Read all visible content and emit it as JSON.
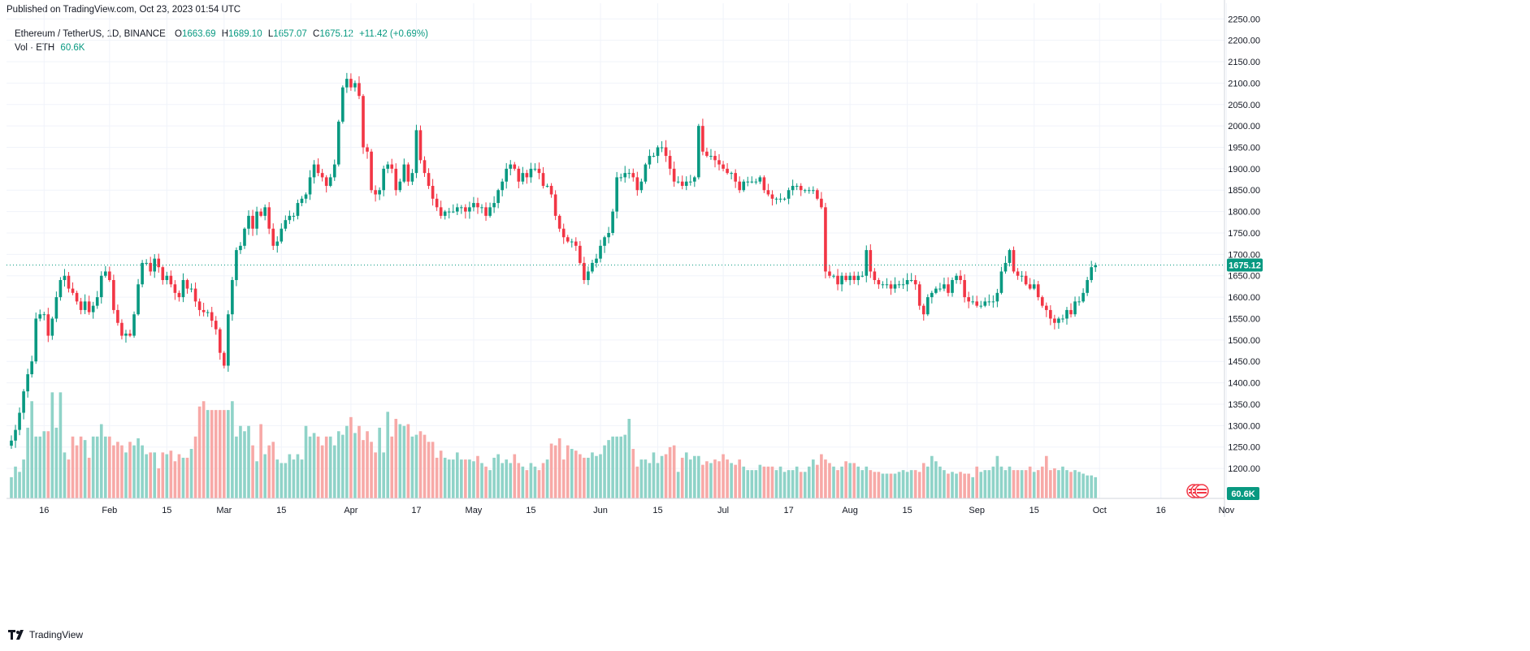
{
  "published": "Published on TradingView.com, Oct 23, 2023 01:54 UTC",
  "legend": {
    "symbol": "Ethereum / TetherUS, 1D, BINANCE",
    "open_label": "O",
    "open": "1663.69",
    "high_label": "H",
    "high": "1689.10",
    "low_label": "L",
    "low": "1657.07",
    "close_label": "C",
    "close": "1675.12",
    "change": "+11.42 (+0.69%)",
    "vol_label": "Vol · ETH",
    "vol_value": "60.6K"
  },
  "footer": {
    "brand": "TradingView"
  },
  "colors": {
    "up": "#089981",
    "down": "#f23645",
    "vol_up": "#8fd3c8",
    "vol_down": "#f7a9a7",
    "grid": "#f0f3fa",
    "text": "#131722"
  },
  "chart_data": {
    "type": "candlestick",
    "series_name": "Ethereum / TetherUS, 1D, BINANCE",
    "first_date": "2023-01-08",
    "last_price": 1675.12,
    "last_price_label": "1675.12",
    "last_volume_label": "60.6K",
    "ylim": [
      1130,
      2260
    ],
    "y_ticks": [
      1200,
      1250,
      1300,
      1350,
      1400,
      1450,
      1500,
      1550,
      1600,
      1650,
      1700,
      1750,
      1800,
      1850,
      1900,
      1950,
      2000,
      2050,
      2100,
      2150,
      2200,
      2250
    ],
    "y_tick_labels": [
      "1200.00",
      "1250.00",
      "1300.00",
      "1350.00",
      "1400.00",
      "1450.00",
      "1500.00",
      "1550.00",
      "1600.00",
      "1650.00",
      "1700.00",
      "1750.00",
      "1800.00",
      "1850.00",
      "1900.00",
      "1950.00",
      "2000.00",
      "2050.00",
      "2100.00",
      "2150.00",
      "2200.00",
      "2250.00"
    ],
    "x_tick_labels": [
      {
        "label": "16",
        "date": "2023-01-16"
      },
      {
        "label": "Feb",
        "date": "2023-02-01"
      },
      {
        "label": "15",
        "date": "2023-02-15"
      },
      {
        "label": "Mar",
        "date": "2023-03-01"
      },
      {
        "label": "15",
        "date": "2023-03-15"
      },
      {
        "label": "Apr",
        "date": "2023-04-01"
      },
      {
        "label": "17",
        "date": "2023-04-17"
      },
      {
        "label": "May",
        "date": "2023-05-01"
      },
      {
        "label": "15",
        "date": "2023-05-15"
      },
      {
        "label": "Jun",
        "date": "2023-06-01"
      },
      {
        "label": "15",
        "date": "2023-06-15"
      },
      {
        "label": "Jul",
        "date": "2023-07-01"
      },
      {
        "label": "17",
        "date": "2023-07-17"
      },
      {
        "label": "Aug",
        "date": "2023-08-01"
      },
      {
        "label": "15",
        "date": "2023-08-15"
      },
      {
        "label": "Sep",
        "date": "2023-09-01"
      },
      {
        "label": "15",
        "date": "2023-09-15"
      },
      {
        "label": "Oct",
        "date": "2023-10-01"
      },
      {
        "label": "16",
        "date": "2023-10-16"
      },
      {
        "label": "Nov",
        "date": "2023-11-01"
      }
    ],
    "closes": [
      1265,
      1290,
      1330,
      1380,
      1420,
      1450,
      1550,
      1560,
      1560,
      1510,
      1550,
      1600,
      1640,
      1650,
      1620,
      1610,
      1590,
      1570,
      1590,
      1565,
      1580,
      1600,
      1650,
      1660,
      1640,
      1570,
      1540,
      1510,
      1515,
      1510,
      1560,
      1630,
      1680,
      1680,
      1660,
      1690,
      1670,
      1640,
      1650,
      1630,
      1610,
      1600,
      1640,
      1620,
      1620,
      1590,
      1570,
      1565,
      1565,
      1545,
      1525,
      1470,
      1440,
      1560,
      1640,
      1710,
      1720,
      1760,
      1790,
      1760,
      1800,
      1790,
      1810,
      1760,
      1720,
      1730,
      1760,
      1780,
      1790,
      1790,
      1820,
      1830,
      1840,
      1880,
      1910,
      1890,
      1880,
      1860,
      1880,
      1910,
      2010,
      2090,
      2110,
      2090,
      2100,
      2070,
      1950,
      1940,
      1850,
      1840,
      1850,
      1900,
      1910,
      1900,
      1850,
      1870,
      1910,
      1870,
      1890,
      1990,
      1920,
      1890,
      1860,
      1830,
      1810,
      1790,
      1800,
      1800,
      1800,
      1810,
      1810,
      1800,
      1810,
      1820,
      1810,
      1810,
      1790,
      1810,
      1820,
      1850,
      1870,
      1900,
      1910,
      1900,
      1870,
      1890,
      1880,
      1900,
      1900,
      1890,
      1860,
      1860,
      1840,
      1790,
      1760,
      1740,
      1730,
      1730,
      1720,
      1680,
      1640,
      1660,
      1680,
      1690,
      1720,
      1740,
      1750,
      1800,
      1880,
      1880,
      1890,
      1890,
      1880,
      1850,
      1870,
      1910,
      1930,
      1930,
      1950,
      1950,
      1930,
      1900,
      1870,
      1870,
      1860,
      1870,
      1870,
      1880,
      2000,
      1940,
      1930,
      1930,
      1920,
      1910,
      1900,
      1890,
      1890,
      1870,
      1850,
      1870,
      1870,
      1870,
      1870,
      1880,
      1850,
      1840,
      1830,
      1830,
      1830,
      1830,
      1850,
      1860,
      1860,
      1850,
      1850,
      1850,
      1850,
      1830,
      1810,
      1660,
      1650,
      1650,
      1630,
      1650,
      1640,
      1650,
      1640,
      1650,
      1650,
      1710,
      1660,
      1640,
      1630,
      1630,
      1630,
      1620,
      1630,
      1630,
      1630,
      1640,
      1640,
      1630,
      1580,
      1560,
      1600,
      1610,
      1620,
      1620,
      1630,
      1610,
      1640,
      1650,
      1640,
      1600,
      1590,
      1590,
      1580,
      1580,
      1590,
      1590,
      1590,
      1610,
      1660,
      1680,
      1710,
      1660,
      1650,
      1650,
      1630,
      1620,
      1630,
      1600,
      1580,
      1570,
      1550,
      1540,
      1550,
      1550,
      1570,
      1560,
      1590,
      1590,
      1610,
      1640,
      1670,
      1675
    ],
    "volumes": [
      1.2,
      1.8,
      1.5,
      2.2,
      4,
      5.5,
      3.5,
      3.5,
      3.8,
      3.8,
      6,
      4,
      6,
      2.6,
      2.2,
      3.5,
      3,
      3.5,
      3.3,
      2.3,
      3.5,
      3.5,
      4.2,
      3.5,
      3.5,
      3,
      3.2,
      3,
      2.6,
      3.2,
      3,
      3.4,
      3,
      2.5,
      2.6,
      2.6,
      1.7,
      2.6,
      2.5,
      2.7,
      2.1,
      2.5,
      2.3,
      2.3,
      2.8,
      3.5,
      5.2,
      5.5,
      5,
      5,
      5,
      5,
      5,
      5,
      5.5,
      3.5,
      4.1,
      3.8,
      4.1,
      3,
      2.1,
      4.2,
      2.5,
      3,
      3.2,
      2.2,
      2,
      2,
      2.5,
      2.2,
      2.5,
      2.2,
      4.1,
      3.5,
      3.7,
      3.5,
      3,
      3.5,
      3.5,
      3,
      3.8,
      3.6,
      4.1,
      4.6,
      3.7,
      4.1,
      3.3,
      3.8,
      3.2,
      2.6,
      4,
      2.6,
      4.9,
      3.5,
      4.5,
      4.2,
      4.1,
      4.2,
      3.5,
      3.6,
      3.8,
      3.6,
      3.2,
      3.2,
      2.3,
      2.7,
      2.3,
      2.2,
      2.2,
      2.6,
      2.2,
      2.2,
      2.2,
      2.1,
      2.4,
      2,
      1.8,
      1.6,
      2.3,
      2.5,
      2,
      2.2,
      2,
      2.5,
      2,
      1.8,
      1.6,
      2,
      1.8,
      1.6,
      2,
      2.2,
      3.1,
      3,
      3.4,
      2.2,
      3,
      2.8,
      2.7,
      2.5,
      2.3,
      2.3,
      2.6,
      2.4,
      2.5,
      3,
      3.3,
      3.5,
      3.5,
      3.5,
      3.6,
      4.5,
      2.8,
      1.8,
      2.2,
      2.2,
      2,
      2.6,
      2,
      2.4,
      2.5,
      2.9,
      3,
      1.5,
      2.3,
      2.6,
      2.2,
      2.4,
      2.4,
      1.9,
      2.1,
      2,
      2.2,
      2.1,
      2.5,
      2.2,
      2,
      1.9,
      2.2,
      1.8,
      1.6,
      1.6,
      1.6,
      1.9,
      1.8,
      1.8,
      1.8,
      1.6,
      1.8,
      1.5,
      1.6,
      1.6,
      1.8,
      1.5,
      1.5,
      1.8,
      2.2,
      1.9,
      2.5,
      2.2,
      2,
      1.8,
      1.6,
      1.8,
      2.1,
      2,
      2,
      1.8,
      1.6,
      1.8,
      1.6,
      1.5,
      1.5,
      1.4,
      1.4,
      1.4,
      1.4,
      1.5,
      1.6,
      1.5,
      1.6,
      1.6,
      1.5,
      2,
      1.8,
      2.4,
      2.1,
      1.8,
      1.6,
      1.4,
      1.5,
      1.4,
      1.5,
      1.4,
      1.4,
      1.2,
      1.8,
      1.5,
      1.6,
      1.6,
      1.8,
      2.4,
      1.8,
      1.6,
      1.8,
      1.6,
      1.6,
      1.6,
      1.6,
      1.8,
      1.5,
      1.6,
      1.8,
      2.4,
      1.6,
      1.7,
      1.6,
      1.8,
      1.6,
      1.5,
      1.6,
      1.5,
      1.4,
      1.3,
      1.3,
      1.2,
      1.2,
      1.6,
      1.3
    ]
  }
}
